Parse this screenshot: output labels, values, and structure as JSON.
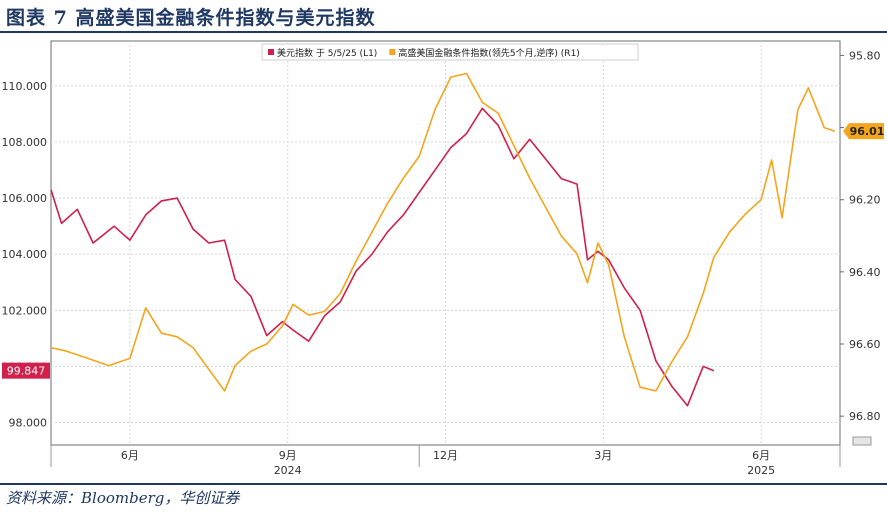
{
  "title": "图表 7   高盛美国金融条件指数与美元指数",
  "source": "资料来源：Bloomberg，华创证券",
  "chart_data": {
    "type": "line",
    "legend_position": "top-center",
    "grid": true,
    "x_ticks": [
      {
        "label": "6月",
        "month": 1
      },
      {
        "label": "9月",
        "month": 4
      },
      {
        "label": "12月",
        "month": 7
      },
      {
        "label": "3月",
        "month": 10
      },
      {
        "label": "6月",
        "month": 13
      }
    ],
    "year_labels": [
      {
        "label": "2024",
        "month": 4
      },
      {
        "label": "2025",
        "month": 13
      }
    ],
    "x_range": [
      -0.5,
      14.5
    ],
    "y_left": {
      "ticks": [
        "98.000",
        "100.000",
        "102.000",
        "104.000",
        "106.000",
        "108.000",
        "110.000"
      ],
      "range": [
        97.2,
        111.6
      ]
    },
    "y_right": {
      "ticks": [
        "95.80",
        "96.00",
        "96.20",
        "96.40",
        "96.60",
        "96.80"
      ],
      "range": [
        95.76,
        96.88
      ],
      "inverted": true
    },
    "series": [
      {
        "name": "美元指数 于 5/5/25 (L1)",
        "axis": "left",
        "color": "#d1204c",
        "last_label": "99.847",
        "points": [
          [
            -0.5,
            106.3
          ],
          [
            -0.3,
            105.1
          ],
          [
            0,
            105.6
          ],
          [
            0.3,
            104.4
          ],
          [
            0.7,
            105.0
          ],
          [
            1,
            104.5
          ],
          [
            1.3,
            105.4
          ],
          [
            1.6,
            105.9
          ],
          [
            1.9,
            106.0
          ],
          [
            2.2,
            104.9
          ],
          [
            2.5,
            104.4
          ],
          [
            2.8,
            104.5
          ],
          [
            3.0,
            103.1
          ],
          [
            3.3,
            102.5
          ],
          [
            3.6,
            101.1
          ],
          [
            3.9,
            101.6
          ],
          [
            4.1,
            101.3
          ],
          [
            4.4,
            100.9
          ],
          [
            4.7,
            101.8
          ],
          [
            5.0,
            102.3
          ],
          [
            5.3,
            103.4
          ],
          [
            5.6,
            104.0
          ],
          [
            5.9,
            104.8
          ],
          [
            6.2,
            105.4
          ],
          [
            6.5,
            106.2
          ],
          [
            6.8,
            107.0
          ],
          [
            7.1,
            107.8
          ],
          [
            7.4,
            108.3
          ],
          [
            7.7,
            109.2
          ],
          [
            8.0,
            108.6
          ],
          [
            8.3,
            107.4
          ],
          [
            8.6,
            108.1
          ],
          [
            8.9,
            107.4
          ],
          [
            9.2,
            106.7
          ],
          [
            9.5,
            106.5
          ],
          [
            9.7,
            103.8
          ],
          [
            9.9,
            104.1
          ],
          [
            10.1,
            103.8
          ],
          [
            10.4,
            102.8
          ],
          [
            10.7,
            102.0
          ],
          [
            11.0,
            100.2
          ],
          [
            11.3,
            99.3
          ],
          [
            11.6,
            98.6
          ],
          [
            11.9,
            100.0
          ],
          [
            12.1,
            99.85
          ]
        ]
      },
      {
        "name": "高盛美国金融条件指数(领先5个月,逆序) (R1)",
        "axis": "right",
        "color": "#f5a51c",
        "last_value": "96.01",
        "points": [
          [
            -0.5,
            96.61
          ],
          [
            -0.2,
            96.62
          ],
          [
            0.2,
            96.64
          ],
          [
            0.6,
            96.66
          ],
          [
            1.0,
            96.64
          ],
          [
            1.3,
            96.5
          ],
          [
            1.6,
            96.57
          ],
          [
            1.9,
            96.58
          ],
          [
            2.2,
            96.61
          ],
          [
            2.5,
            96.67
          ],
          [
            2.8,
            96.73
          ],
          [
            3.0,
            96.66
          ],
          [
            3.3,
            96.62
          ],
          [
            3.6,
            96.6
          ],
          [
            3.9,
            96.55
          ],
          [
            4.1,
            96.49
          ],
          [
            4.4,
            96.52
          ],
          [
            4.7,
            96.51
          ],
          [
            5.0,
            96.46
          ],
          [
            5.3,
            96.37
          ],
          [
            5.6,
            96.29
          ],
          [
            5.9,
            96.21
          ],
          [
            6.2,
            96.14
          ],
          [
            6.5,
            96.08
          ],
          [
            6.8,
            95.95
          ],
          [
            7.1,
            95.86
          ],
          [
            7.4,
            95.85
          ],
          [
            7.7,
            95.93
          ],
          [
            8.0,
            95.96
          ],
          [
            8.3,
            96.05
          ],
          [
            8.6,
            96.14
          ],
          [
            8.9,
            96.22
          ],
          [
            9.2,
            96.3
          ],
          [
            9.5,
            96.35
          ],
          [
            9.7,
            96.43
          ],
          [
            9.9,
            96.32
          ],
          [
            10.1,
            96.38
          ],
          [
            10.4,
            96.58
          ],
          [
            10.7,
            96.72
          ],
          [
            11.0,
            96.73
          ],
          [
            11.3,
            96.65
          ],
          [
            11.6,
            96.58
          ],
          [
            11.9,
            96.46
          ],
          [
            12.1,
            96.36
          ],
          [
            12.4,
            96.29
          ],
          [
            12.7,
            96.24
          ],
          [
            13.0,
            96.2
          ],
          [
            13.2,
            96.09
          ],
          [
            13.4,
            96.25
          ],
          [
            13.7,
            95.95
          ],
          [
            13.9,
            95.89
          ],
          [
            14.2,
            96.0
          ],
          [
            14.4,
            96.01
          ]
        ]
      }
    ]
  }
}
